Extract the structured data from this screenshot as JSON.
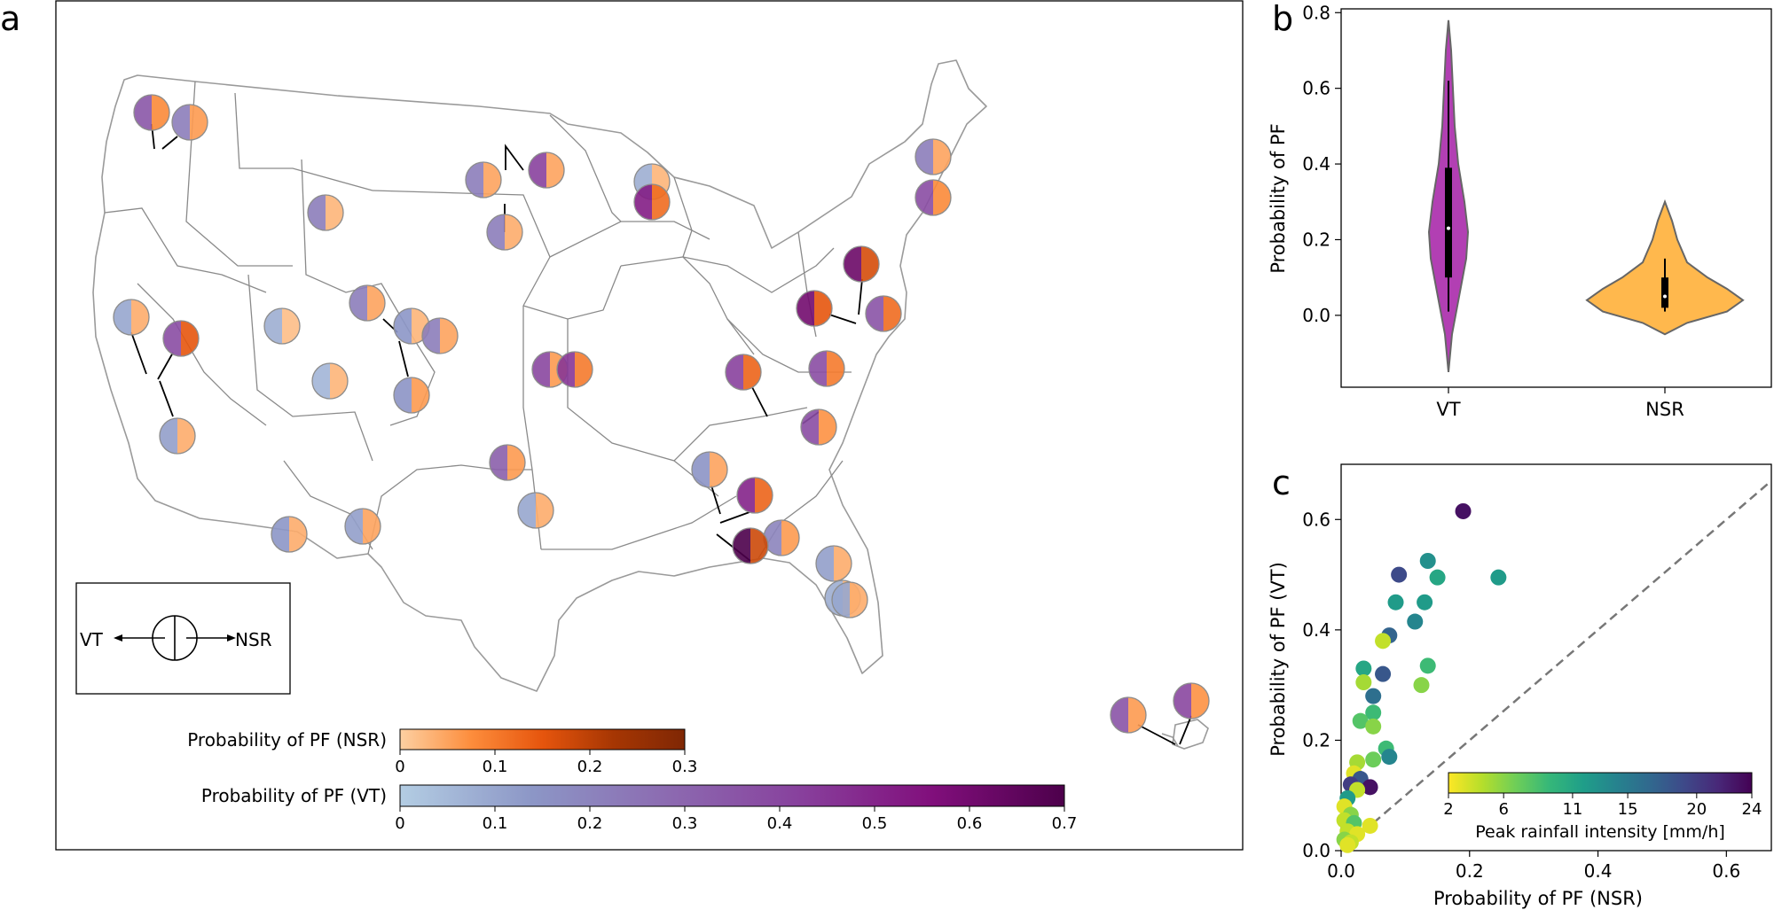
{
  "figure": {
    "panel_labels": [
      "a",
      "b",
      "c"
    ]
  },
  "chart_data": [
    {
      "type": "map",
      "panel": "a",
      "legend_key": {
        "left": "VT",
        "right": "NSR"
      },
      "colorbars": [
        {
          "label": "Probability of PF (NSR)",
          "range": [
            0,
            0.3
          ],
          "ticks": [
            "0",
            "0.1",
            "0.2",
            "0.3"
          ],
          "colors": [
            "#fdd0a2",
            "#fd8d3c",
            "#e6550d",
            "#a63603",
            "#7f2704"
          ]
        },
        {
          "label": "Probability of PF (VT)",
          "range": [
            0,
            0.7
          ],
          "ticks": [
            "0",
            "0.1",
            "0.2",
            "0.3",
            "0.4",
            "0.5",
            "0.6",
            "0.7"
          ],
          "colors": [
            "#b3cde3",
            "#8c96c6",
            "#8c6bb1",
            "#88419d",
            "#810f7c",
            "#4d004b"
          ]
        }
      ],
      "sites": [
        {
          "vt": 0.35,
          "nsr": 0.08
        },
        {
          "vt": 0.22,
          "nsr": 0.06
        },
        {
          "vt": 0.22,
          "nsr": 0.05
        },
        {
          "vt": 0.42,
          "nsr": 0.05
        },
        {
          "vt": 0.22,
          "nsr": 0.03
        },
        {
          "vt": 0.22,
          "nsr": 0.04
        },
        {
          "vt": 0.08,
          "nsr": 0.03
        },
        {
          "vt": 0.52,
          "nsr": 0.12
        },
        {
          "vt": 0.22,
          "nsr": 0.05
        },
        {
          "vt": 0.38,
          "nsr": 0.08
        },
        {
          "vt": 0.1,
          "nsr": 0.04
        },
        {
          "vt": 0.38,
          "nsr": 0.15
        },
        {
          "vt": 0.08,
          "nsr": 0.02
        },
        {
          "vt": 0.22,
          "nsr": 0.05
        },
        {
          "vt": 0.14,
          "nsr": 0.03
        },
        {
          "vt": 0.22,
          "nsr": 0.05
        },
        {
          "vt": 0.06,
          "nsr": 0.03
        },
        {
          "vt": 0.15,
          "nsr": 0.06
        },
        {
          "vt": 0.12,
          "nsr": 0.04
        },
        {
          "vt": 0.4,
          "nsr": 0.06
        },
        {
          "vt": 0.45,
          "nsr": 0.1
        },
        {
          "vt": 0.62,
          "nsr": 0.17
        },
        {
          "vt": 0.6,
          "nsr": 0.15
        },
        {
          "vt": 0.36,
          "nsr": 0.12
        },
        {
          "vt": 0.42,
          "nsr": 0.13
        },
        {
          "vt": 0.38,
          "nsr": 0.1
        },
        {
          "vt": 0.38,
          "nsr": 0.07
        },
        {
          "vt": 0.32,
          "nsr": 0.06
        },
        {
          "vt": 0.1,
          "nsr": 0.04
        },
        {
          "vt": 0.15,
          "nsr": 0.05
        },
        {
          "vt": 0.5,
          "nsr": 0.13
        },
        {
          "vt": 0.2,
          "nsr": 0.06
        },
        {
          "vt": 0.7,
          "nsr": 0.18
        },
        {
          "vt": 0.12,
          "nsr": 0.04
        },
        {
          "vt": 0.14,
          "nsr": 0.04
        },
        {
          "vt": 0.12,
          "nsr": 0.05
        },
        {
          "vt": 0.08,
          "nsr": 0.03
        },
        {
          "vt": 0.1,
          "nsr": 0.04
        },
        {
          "vt": 0.36,
          "nsr": 0.06
        },
        {
          "vt": 0.4,
          "nsr": 0.07
        }
      ]
    },
    {
      "type": "violin",
      "panel": "b",
      "categories": [
        "VT",
        "NSR"
      ],
      "ylabel": "Probability of PF",
      "ylim": [
        -0.2,
        0.8
      ],
      "yticks": [
        "0.0",
        "0.2",
        "0.4",
        "0.6",
        "0.8"
      ],
      "series": [
        {
          "name": "VT",
          "color": "#b23fb3",
          "range": [
            -0.15,
            0.78
          ],
          "q1": 0.1,
          "median": 0.23,
          "q3": 0.39,
          "whisker": [
            0.01,
            0.62
          ]
        },
        {
          "name": "NSR",
          "color": "#ffb84d",
          "range": [
            -0.05,
            0.3
          ],
          "q1": 0.02,
          "median": 0.05,
          "q3": 0.1,
          "whisker": [
            0.01,
            0.15
          ]
        }
      ]
    },
    {
      "type": "scatter",
      "panel": "c",
      "xlabel": "Probability of PF (NSR)",
      "ylabel": "Probability of PF (VT)",
      "xlim": [
        0,
        0.67
      ],
      "ylim": [
        0,
        0.7
      ],
      "xticks": [
        "0.0",
        "0.2",
        "0.4",
        "0.6"
      ],
      "yticks": [
        "0.0",
        "0.2",
        "0.4",
        "0.6"
      ],
      "colorbar": {
        "label": "Peak rainfall intensity [mm/h]",
        "range": [
          2,
          24
        ],
        "ticks": [
          "2",
          "6",
          "11",
          "15",
          "20",
          "24"
        ]
      },
      "points": [
        [
          0.19,
          0.615,
          23
        ],
        [
          0.09,
          0.5,
          19
        ],
        [
          0.135,
          0.525,
          13
        ],
        [
          0.15,
          0.495,
          11
        ],
        [
          0.245,
          0.495,
          12
        ],
        [
          0.085,
          0.45,
          12
        ],
        [
          0.13,
          0.45,
          12
        ],
        [
          0.115,
          0.415,
          14
        ],
        [
          0.075,
          0.39,
          17
        ],
        [
          0.065,
          0.38,
          4
        ],
        [
          0.135,
          0.335,
          9
        ],
        [
          0.035,
          0.33,
          11
        ],
        [
          0.065,
          0.32,
          18
        ],
        [
          0.035,
          0.305,
          5
        ],
        [
          0.125,
          0.3,
          6
        ],
        [
          0.05,
          0.28,
          16
        ],
        [
          0.05,
          0.25,
          9
        ],
        [
          0.03,
          0.235,
          8
        ],
        [
          0.05,
          0.225,
          6
        ],
        [
          0.07,
          0.185,
          9
        ],
        [
          0.075,
          0.17,
          14
        ],
        [
          0.05,
          0.165,
          7
        ],
        [
          0.025,
          0.16,
          5
        ],
        [
          0.02,
          0.14,
          3
        ],
        [
          0.03,
          0.13,
          18
        ],
        [
          0.015,
          0.12,
          20
        ],
        [
          0.045,
          0.115,
          23
        ],
        [
          0.025,
          0.11,
          4
        ],
        [
          0.01,
          0.095,
          12
        ],
        [
          0.005,
          0.08,
          3
        ],
        [
          0.015,
          0.065,
          6
        ],
        [
          0.005,
          0.055,
          4
        ],
        [
          0.02,
          0.05,
          8
        ],
        [
          0.045,
          0.045,
          3
        ],
        [
          0.01,
          0.035,
          4
        ],
        [
          0.025,
          0.03,
          3
        ],
        [
          0.005,
          0.02,
          6
        ],
        [
          0.015,
          0.015,
          4
        ],
        [
          0.01,
          0.01,
          3
        ]
      ]
    }
  ]
}
